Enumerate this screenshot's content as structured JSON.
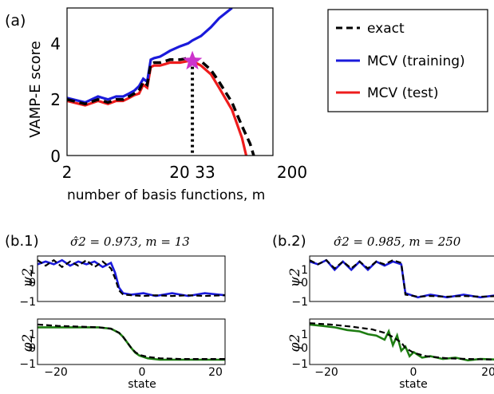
{
  "panel_a": {
    "label": "(a)",
    "ylabel": "VAMP-E score",
    "xlabel": "number of basis functions, m",
    "x_ticks": [
      "2",
      "20",
      "33",
      "200"
    ],
    "y_ticks": [
      "0",
      "2",
      "4"
    ],
    "legend": [
      "exact",
      "MCV (training)",
      "MCV (test)"
    ],
    "colors": {
      "exact": "#000000",
      "training": "#1a1adb",
      "test": "#ee1c1c",
      "star": "#cc33cc"
    }
  },
  "panel_b1": {
    "label": "(b.1)",
    "title": "σ̂2 = 0.973, m = 13",
    "psi_label": "ψ2",
    "phi_label": "φ2",
    "y_ticks": [
      "1",
      "0",
      "−1"
    ],
    "x_ticks": [
      "−20",
      "0",
      "20"
    ],
    "xlabel": "state"
  },
  "panel_b2": {
    "label": "(b.2)",
    "title": "σ̂2 = 0.985, m = 250",
    "psi_label": "ψ2",
    "phi_label": "φ2",
    "y_ticks": [
      "1",
      "0",
      "−1"
    ],
    "x_ticks": [
      "−20",
      "0",
      "20"
    ],
    "xlabel": "state"
  },
  "chart_data": [
    {
      "type": "line",
      "xscale": "log",
      "xlim": [
        2,
        200
      ],
      "ylim": [
        0,
        5
      ],
      "xlabel": "number of basis functions, m",
      "ylabel": "VAMP-E score",
      "legend_position": "right",
      "series": [
        {
          "name": "exact",
          "style": "dashed",
          "x": [
            2,
            3,
            4,
            5,
            6,
            7,
            8,
            9,
            10,
            11,
            12,
            13,
            14,
            16,
            18,
            20,
            25,
            30,
            33,
            40,
            50,
            60,
            80,
            100,
            120,
            130
          ],
          "y": [
            1.9,
            1.75,
            1.9,
            1.8,
            1.9,
            1.9,
            2.0,
            2.1,
            2.2,
            2.5,
            2.4,
            3.1,
            3.15,
            3.15,
            3.2,
            3.25,
            3.25,
            3.3,
            3.3,
            3.2,
            2.9,
            2.5,
            1.8,
            1.0,
            0.4,
            0.0
          ]
        },
        {
          "name": "MCV (training)",
          "x": [
            2,
            3,
            4,
            5,
            6,
            7,
            8,
            9,
            10,
            11,
            12,
            13,
            14,
            16,
            18,
            20,
            25,
            30,
            33,
            40,
            50,
            60,
            80
          ],
          "y": [
            1.95,
            1.8,
            2.0,
            1.9,
            2.0,
            2.0,
            2.1,
            2.2,
            2.35,
            2.6,
            2.5,
            3.25,
            3.3,
            3.35,
            3.45,
            3.55,
            3.7,
            3.8,
            3.9,
            4.05,
            4.35,
            4.65,
            5.0
          ]
        },
        {
          "name": "MCV (test)",
          "x": [
            2,
            3,
            4,
            5,
            6,
            7,
            8,
            9,
            10,
            11,
            12,
            13,
            14,
            16,
            18,
            20,
            25,
            30,
            33,
            40,
            50,
            60,
            80,
            100,
            110
          ],
          "y": [
            1.85,
            1.7,
            1.85,
            1.75,
            1.85,
            1.85,
            1.95,
            2.05,
            2.1,
            2.4,
            2.3,
            3.0,
            3.05,
            3.05,
            3.1,
            3.15,
            3.15,
            3.2,
            3.2,
            3.05,
            2.75,
            2.3,
            1.55,
            0.6,
            0.0
          ]
        }
      ],
      "annotations": [
        {
          "type": "star",
          "x": 33,
          "y": 3.2
        },
        {
          "type": "vline",
          "x": 33
        }
      ]
    },
    {
      "type": "line",
      "title": "σ̂2 = 0.973, m = 13",
      "xlim": [
        -23,
        23
      ],
      "xlabel": "state",
      "psi": {
        "ylabel": "ψ2",
        "ylim": [
          -1.2,
          2.1
        ],
        "exact": {
          "x": [
            -23,
            -21,
            -19,
            -17,
            -15,
            -13,
            -11,
            -9,
            -7,
            -5,
            -4,
            -3,
            -2,
            0,
            3,
            6,
            10,
            14,
            18,
            23
          ],
          "y": [
            1.8,
            1.4,
            1.8,
            1.3,
            1.7,
            1.4,
            1.8,
            1.3,
            1.7,
            1.2,
            0.5,
            -0.4,
            -0.7,
            -0.75,
            -0.8,
            -0.75,
            -0.8,
            -0.75,
            -0.8,
            -0.75
          ]
        },
        "estimate": {
          "x": [
            -23,
            -21,
            -19,
            -17,
            -15,
            -13,
            -11,
            -9,
            -7,
            -5,
            -4,
            -3,
            -2,
            0,
            3,
            6,
            10,
            14,
            18,
            23
          ],
          "y": [
            1.5,
            1.7,
            1.5,
            1.8,
            1.4,
            1.7,
            1.5,
            1.7,
            1.3,
            1.6,
            0.9,
            -0.2,
            -0.6,
            -0.7,
            -0.6,
            -0.8,
            -0.6,
            -0.8,
            -0.6,
            -0.75
          ]
        }
      },
      "phi": {
        "ylabel": "φ2",
        "ylim": [
          -1.2,
          2.1
        ],
        "exact": {
          "x": [
            -23,
            -18,
            -13,
            -8,
            -5,
            -3,
            -2,
            -1,
            0,
            1,
            2,
            4,
            7,
            12,
            17,
            23
          ],
          "y": [
            1.7,
            1.6,
            1.55,
            1.5,
            1.4,
            1.1,
            0.8,
            0.4,
            0.0,
            -0.3,
            -0.5,
            -0.65,
            -0.75,
            -0.8,
            -0.8,
            -0.8
          ]
        },
        "estimate": {
          "x": [
            -23,
            -18,
            -13,
            -8,
            -5,
            -3,
            -2,
            -1,
            0,
            1,
            2,
            4,
            7,
            12,
            17,
            23
          ],
          "y": [
            1.5,
            1.5,
            1.5,
            1.5,
            1.4,
            1.1,
            0.8,
            0.4,
            0.0,
            -0.35,
            -0.55,
            -0.75,
            -0.85,
            -0.85,
            -0.85,
            -0.85
          ]
        }
      }
    },
    {
      "type": "line",
      "title": "σ̂2 = 0.985, m = 250",
      "xlim": [
        -23,
        23
      ],
      "xlabel": "state",
      "psi": {
        "ylabel": "ψ2",
        "ylim": [
          -1.2,
          2.1
        ],
        "exact": {
          "x": [
            -23,
            -21,
            -19,
            -17,
            -15,
            -13,
            -11,
            -9,
            -7,
            -5,
            -3,
            -1,
            0,
            3,
            6,
            10,
            14,
            18,
            23
          ],
          "y": [
            1.8,
            1.5,
            1.8,
            1.2,
            1.7,
            1.2,
            1.7,
            1.2,
            1.7,
            1.5,
            1.8,
            1.6,
            -0.7,
            -0.85,
            -0.8,
            -0.85,
            -0.8,
            -0.85,
            -0.8
          ]
        },
        "estimate": {
          "x": [
            -23,
            -21,
            -19,
            -17,
            -15,
            -13,
            -11,
            -9,
            -7,
            -5,
            -3,
            -1,
            0,
            3,
            6,
            10,
            14,
            18,
            23
          ],
          "y": [
            1.7,
            1.5,
            1.8,
            1.1,
            1.7,
            1.1,
            1.7,
            1.1,
            1.7,
            1.4,
            1.7,
            1.5,
            -0.6,
            -0.9,
            -0.7,
            -0.9,
            -0.7,
            -0.9,
            -0.7
          ]
        }
      },
      "phi": {
        "ylabel": "φ2",
        "ylim": [
          -1.2,
          2.1
        ],
        "exact": {
          "x": [
            -23,
            -18,
            -13,
            -8,
            -5,
            -3,
            -1,
            0,
            2,
            5,
            10,
            15,
            23
          ],
          "y": [
            1.8,
            1.7,
            1.55,
            1.35,
            1.1,
            0.8,
            0.4,
            0.0,
            -0.35,
            -0.6,
            -0.75,
            -0.8,
            -0.85
          ]
        },
        "estimate": {
          "x": [
            -23,
            -20,
            -17,
            -14,
            -11,
            -9,
            -7,
            -5,
            -4,
            -3,
            -2,
            -1,
            0,
            1,
            2,
            4,
            6,
            9,
            12,
            15,
            18,
            23
          ],
          "y": [
            1.7,
            1.6,
            1.5,
            1.3,
            1.2,
            1.0,
            0.9,
            0.6,
            1.2,
            0.2,
            0.9,
            -0.2,
            0.1,
            -0.6,
            -0.3,
            -0.7,
            -0.6,
            -0.8,
            -0.7,
            -0.9,
            -0.8,
            -0.85
          ]
        }
      }
    }
  ]
}
